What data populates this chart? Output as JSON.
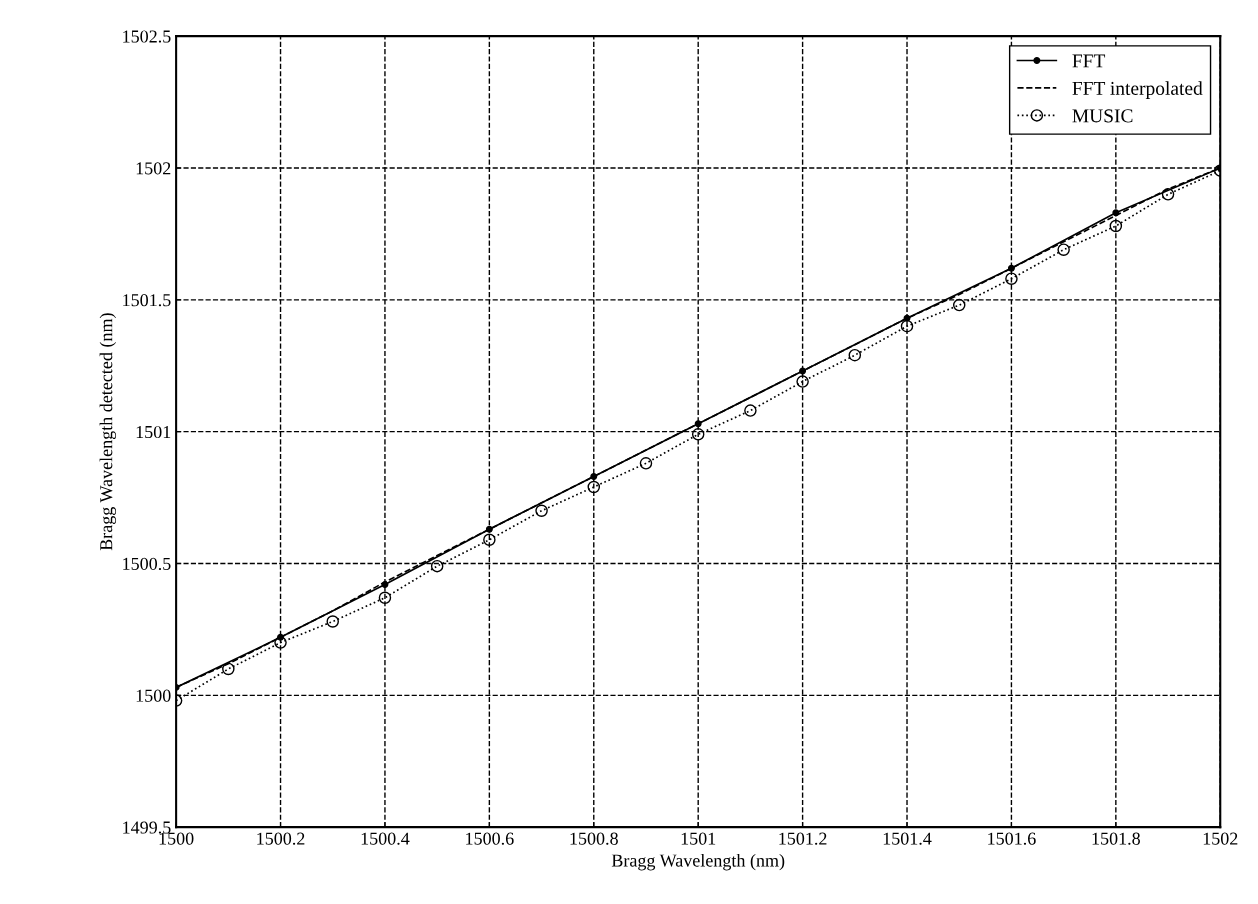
{
  "chart_data": {
    "type": "line",
    "xlabel": "Bragg Wavelength (nm)",
    "ylabel": "Bragg Wavelength detected (nm)",
    "xlim": [
      1500,
      1502
    ],
    "xticks": [
      1500,
      1500.2,
      1500.4,
      1500.6,
      1500.8,
      1501,
      1501.2,
      1501.4,
      1501.6,
      1501.8,
      1502
    ],
    "ylim": [
      1499.5,
      1502.5
    ],
    "yticks": [
      1499.5,
      1500,
      1500.5,
      1501,
      1501.5,
      1502,
      1502.5
    ],
    "grid": true,
    "legend": "top right",
    "series": [
      {
        "name": "FFT",
        "color": "#000000",
        "marker": "circle",
        "line_style": "solid",
        "x": [
          1500,
          1500.2,
          1500.4,
          1500.6,
          1500.8,
          1501,
          1501.2,
          1501.4,
          1501.6,
          1501.8,
          1502
        ],
        "values": [
          1500.03,
          1500.22,
          1500.42,
          1500.63,
          1500.83,
          1501.03,
          1501.23,
          1501.43,
          1501.62,
          1501.83,
          1502.0
        ]
      },
      {
        "name": "FFT interpolated",
        "color": "#000000",
        "marker": "none",
        "line_style": "dashed",
        "x": [
          1500,
          1500.1,
          1500.2,
          1500.3,
          1500.4,
          1500.5,
          1500.6,
          1500.7,
          1500.8,
          1500.9,
          1501,
          1501.1,
          1501.2,
          1501.3,
          1501.4,
          1501.5,
          1501.6,
          1501.7,
          1501.8,
          1501.9,
          1502
        ],
        "values": [
          1500.03,
          1500.12,
          1500.22,
          1500.32,
          1500.43,
          1500.53,
          1500.63,
          1500.73,
          1500.83,
          1500.93,
          1501.03,
          1501.13,
          1501.23,
          1501.33,
          1501.43,
          1501.52,
          1501.62,
          1501.72,
          1501.82,
          1501.92,
          1502.0
        ]
      },
      {
        "name": "MUSIC",
        "color": "#000000",
        "marker": "circle",
        "line_style": "dotted",
        "x": [
          1500,
          1500.1,
          1500.2,
          1500.3,
          1500.4,
          1500.5,
          1500.6,
          1500.7,
          1500.8,
          1500.9,
          1501,
          1501.1,
          1501.2,
          1501.3,
          1501.4,
          1501.5,
          1501.6,
          1501.7,
          1501.8,
          1501.9,
          1502
        ],
        "values": [
          1499.98,
          1500.1,
          1500.2,
          1500.28,
          1500.37,
          1500.49,
          1500.59,
          1500.7,
          1500.79,
          1500.88,
          1500.99,
          1501.08,
          1501.19,
          1501.29,
          1501.4,
          1501.48,
          1501.58,
          1501.69,
          1501.78,
          1501.9,
          1501.99
        ]
      }
    ]
  }
}
